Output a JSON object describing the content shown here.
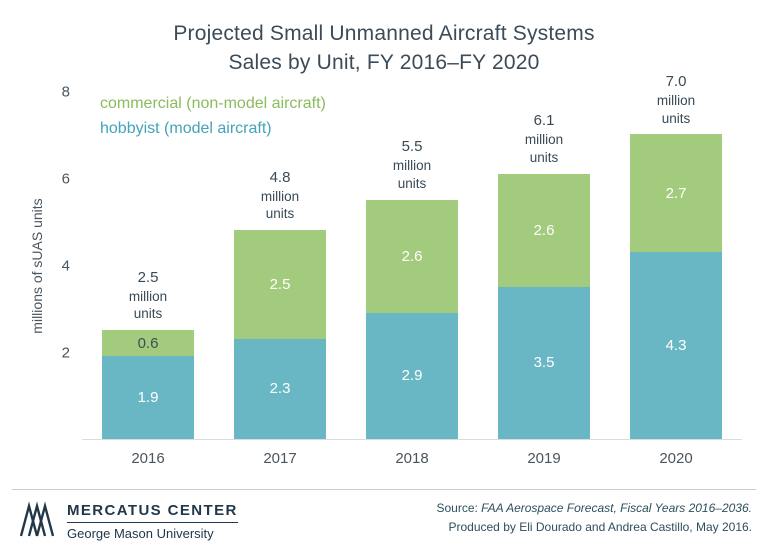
{
  "title": {
    "line1": "Projected Small Unmanned Aircraft Systems",
    "line2": "Sales by Unit, FY 2016–FY 2020"
  },
  "legend": [
    {
      "key": "commercial",
      "label": "commercial (non-model aircraft)",
      "color": "#8abc5e"
    },
    {
      "key": "hobbyist",
      "label": "hobbyist (model aircraft)",
      "color": "#44a3b8"
    }
  ],
  "chart_data": {
    "type": "bar",
    "stacked": true,
    "title": "Projected Small Unmanned Aircraft Systems Sales by Unit, FY 2016–FY 2020",
    "categories": [
      "2016",
      "2017",
      "2018",
      "2019",
      "2020"
    ],
    "series": [
      {
        "key": "hobbyist",
        "name": "hobbyist (model aircraft)",
        "color": "#69b7c5",
        "values": [
          1.9,
          2.3,
          2.9,
          3.5,
          4.3
        ]
      },
      {
        "key": "commercial",
        "name": "commercial (non-model aircraft)",
        "color": "#a3cb7d",
        "values": [
          0.6,
          2.5,
          2.6,
          2.6,
          2.7
        ]
      }
    ],
    "totals": [
      2.5,
      4.8,
      5.5,
      6.1,
      7.0
    ],
    "total_label_suffix": [
      "million",
      "units"
    ],
    "ylabel": "millions of sUAS units",
    "ylim": [
      0,
      8
    ],
    "yticks": [
      2,
      4,
      6,
      8
    ],
    "grid": false,
    "legend_position": "top-left"
  },
  "footer": {
    "org_name": "MERCATUS CENTER",
    "org_sub": "George Mason University",
    "source_prefix": "Source: ",
    "source_title": "FAA Aerospace Forecast, Fiscal Years 2016–2036.",
    "source_line2": "Produced by Eli Dourado and Andrea Castillo, May 2016."
  }
}
